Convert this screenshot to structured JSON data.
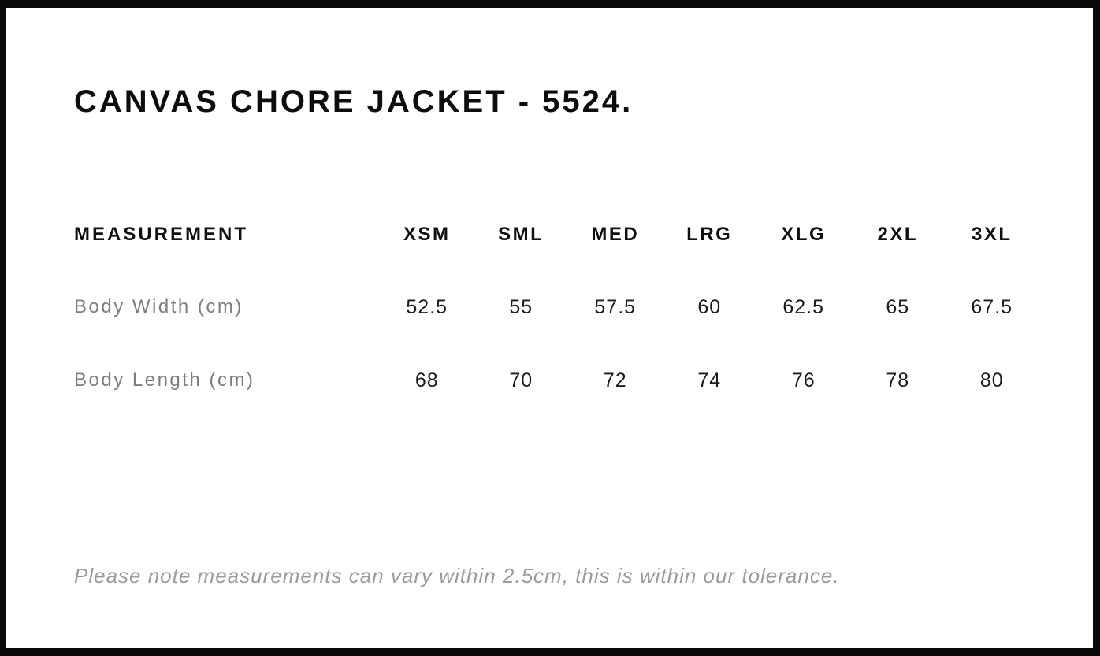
{
  "title": "CANVAS CHORE JACKET - 5524.",
  "size_chart": {
    "measurement_header": "MEASUREMENT",
    "size_headers": [
      "XSM",
      "SML",
      "MED",
      "LRG",
      "XLG",
      "2XL",
      "3XL"
    ],
    "rows": [
      {
        "label": "Body Width (cm)",
        "values": [
          "52.5",
          "55",
          "57.5",
          "60",
          "62.5",
          "65",
          "67.5"
        ]
      },
      {
        "label": "Body Length (cm)",
        "values": [
          "68",
          "70",
          "72",
          "74",
          "76",
          "78",
          "80"
        ]
      }
    ]
  },
  "note": "Please note measurements can vary within 2.5cm, this is within our tolerance.",
  "colors": {
    "frame_border": "#0a0a0a",
    "title_text": "#0d0d0d",
    "header_text": "#101010",
    "row_label_text": "#7d7d7d",
    "value_text": "#1b1b1b",
    "divider": "#a6a6a6",
    "note_text": "#9b9b9b",
    "background": "#ffffff"
  },
  "chart_data": {
    "type": "table",
    "title": "CANVAS CHORE JACKET - 5524.",
    "categories": [
      "XSM",
      "SML",
      "MED",
      "LRG",
      "XLG",
      "2XL",
      "3XL"
    ],
    "series": [
      {
        "name": "Body Width (cm)",
        "values": [
          52.5,
          55,
          57.5,
          60,
          62.5,
          65,
          67.5
        ]
      },
      {
        "name": "Body Length (cm)",
        "values": [
          68,
          70,
          72,
          74,
          76,
          78,
          80
        ]
      }
    ],
    "note": "Please note measurements can vary within 2.5cm, this is within our tolerance.",
    "layout": {
      "divider_between_label_and_values": true,
      "grid": "off"
    }
  }
}
